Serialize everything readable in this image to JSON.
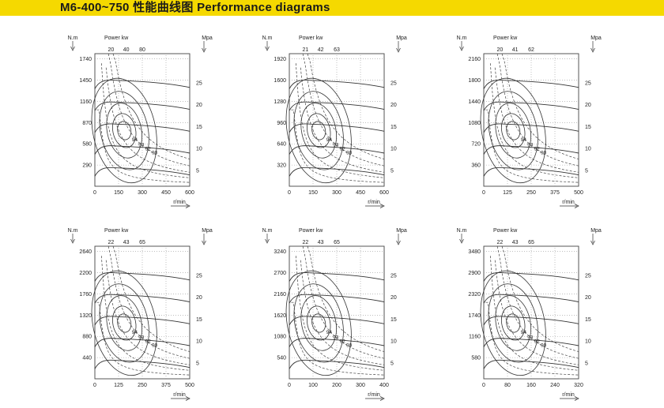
{
  "header": {
    "title": "M6-400~750 性能曲线图  Performance diagrams",
    "bar_color": "#f5d900"
  },
  "chart_data": [
    {
      "type": "line",
      "torque_unit": "N.m",
      "power_label": "Power kw",
      "pressure_unit": "Mpa",
      "speed_unit": "r/min",
      "torque_ticks": [
        1740,
        1450,
        1160,
        870,
        580,
        290
      ],
      "speed_ticks": [
        0,
        150,
        300,
        450,
        600
      ],
      "pressure_ticks": [
        25,
        20,
        15,
        10,
        5
      ],
      "power_ticks": [
        20,
        40,
        80
      ],
      "efficiency_labels": [
        "94",
        "93",
        "92",
        "90"
      ]
    },
    {
      "type": "line",
      "torque_unit": "N.m",
      "power_label": "Power kw",
      "pressure_unit": "Mpa",
      "speed_unit": "r/min",
      "torque_ticks": [
        1920,
        1600,
        1280,
        960,
        640,
        320
      ],
      "speed_ticks": [
        0,
        150,
        300,
        450,
        600
      ],
      "pressure_ticks": [
        25,
        20,
        15,
        10,
        5
      ],
      "power_ticks": [
        21,
        42,
        63
      ],
      "efficiency_labels": [
        "94",
        "93",
        "92",
        "90"
      ]
    },
    {
      "type": "line",
      "torque_unit": "N.m",
      "power_label": "Power kw",
      "pressure_unit": "Mpa",
      "speed_unit": "r/min",
      "torque_ticks": [
        2160,
        1800,
        1440,
        1080,
        720,
        360
      ],
      "speed_ticks": [
        0,
        125,
        250,
        375,
        500
      ],
      "pressure_ticks": [
        25,
        20,
        15,
        10,
        5
      ],
      "power_ticks": [
        20,
        41,
        62
      ],
      "efficiency_labels": [
        "94",
        "93",
        "92",
        "90"
      ]
    },
    {
      "type": "line",
      "torque_unit": "N.m",
      "power_label": "Power kw",
      "pressure_unit": "Mpa",
      "speed_unit": "r/min",
      "torque_ticks": [
        2640,
        2200,
        1760,
        1320,
        880,
        440
      ],
      "speed_ticks": [
        0,
        125,
        250,
        375,
        500
      ],
      "pressure_ticks": [
        25,
        20,
        15,
        10,
        5
      ],
      "power_ticks": [
        22,
        43,
        65
      ],
      "efficiency_labels": [
        "94",
        "93",
        "92",
        "90"
      ]
    },
    {
      "type": "line",
      "torque_unit": "N.m",
      "power_label": "Power kw",
      "pressure_unit": "Mpa",
      "speed_unit": "r/min",
      "torque_ticks": [
        3240,
        2700,
        2160,
        1620,
        1080,
        540
      ],
      "speed_ticks": [
        0,
        100,
        200,
        300,
        400
      ],
      "pressure_ticks": [
        25,
        20,
        15,
        10,
        5
      ],
      "power_ticks": [
        22,
        43,
        65
      ],
      "efficiency_labels": [
        "94",
        "93",
        "92",
        "90"
      ]
    },
    {
      "type": "line",
      "torque_unit": "N.m",
      "power_label": "Power kw",
      "pressure_unit": "Mpa",
      "speed_unit": "r/min",
      "torque_ticks": [
        3480,
        2900,
        2320,
        1740,
        1160,
        580
      ],
      "speed_ticks": [
        0,
        80,
        160,
        240,
        320
      ],
      "pressure_ticks": [
        25,
        20,
        15,
        10,
        5
      ],
      "power_ticks": [
        22,
        43,
        65
      ],
      "efficiency_labels": [
        "94",
        "93",
        "92",
        "90"
      ]
    }
  ]
}
